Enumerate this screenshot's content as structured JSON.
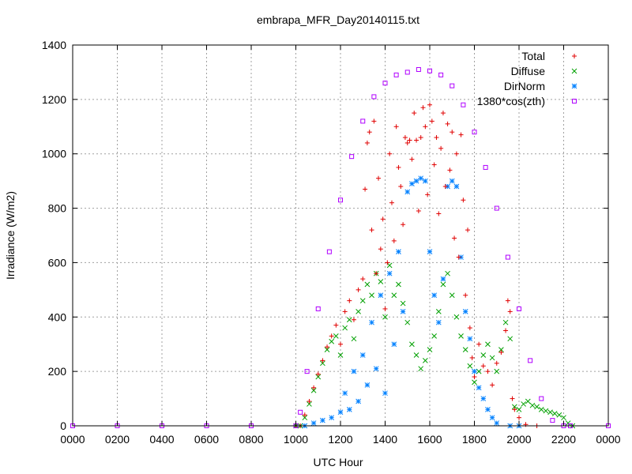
{
  "chart_data": {
    "type": "scatter",
    "title": "embrapa_MFR_Day20140115.txt",
    "xlabel": "UTC Hour",
    "ylabel": "Irradiance (W/m2)",
    "xlim": [
      0,
      24
    ],
    "ylim": [
      0,
      1400
    ],
    "x_ticks": [
      0,
      2,
      4,
      6,
      8,
      10,
      12,
      14,
      16,
      18,
      20,
      22,
      24
    ],
    "x_tick_labels": [
      "0000",
      "0200",
      "0400",
      "0600",
      "0800",
      "1000",
      "1200",
      "1400",
      "1600",
      "1800",
      "2000",
      "2200",
      "0000"
    ],
    "y_ticks": [
      0,
      200,
      400,
      600,
      800,
      1000,
      1200,
      1400
    ],
    "y_tick_labels": [
      "0",
      "200",
      "400",
      "600",
      "800",
      "1000",
      "1200",
      "1400"
    ],
    "grid": true,
    "legend_position": "top-right",
    "series": [
      {
        "name": "Total",
        "marker": "plus",
        "color": "#e00000",
        "points": [
          [
            10.0,
            0
          ],
          [
            10.2,
            0
          ],
          [
            10.4,
            40
          ],
          [
            10.6,
            90
          ],
          [
            10.8,
            140
          ],
          [
            11.0,
            190
          ],
          [
            11.2,
            240
          ],
          [
            11.4,
            290
          ],
          [
            11.6,
            330
          ],
          [
            11.8,
            370
          ],
          [
            12.0,
            300
          ],
          [
            12.2,
            420
          ],
          [
            12.4,
            460
          ],
          [
            12.6,
            390
          ],
          [
            12.8,
            500
          ],
          [
            13.0,
            540
          ],
          [
            13.1,
            870
          ],
          [
            13.2,
            1040
          ],
          [
            13.3,
            1080
          ],
          [
            13.4,
            720
          ],
          [
            13.5,
            1120
          ],
          [
            13.6,
            560
          ],
          [
            13.7,
            910
          ],
          [
            13.8,
            650
          ],
          [
            13.9,
            760
          ],
          [
            14.0,
            430
          ],
          [
            14.1,
            600
          ],
          [
            14.2,
            1000
          ],
          [
            14.3,
            820
          ],
          [
            14.4,
            680
          ],
          [
            14.5,
            1100
          ],
          [
            14.6,
            950
          ],
          [
            14.7,
            880
          ],
          [
            14.8,
            740
          ],
          [
            14.9,
            1060
          ],
          [
            15.0,
            1040
          ],
          [
            15.1,
            1050
          ],
          [
            15.2,
            980
          ],
          [
            15.3,
            1150
          ],
          [
            15.4,
            1050
          ],
          [
            15.5,
            790
          ],
          [
            15.6,
            1060
          ],
          [
            15.7,
            1170
          ],
          [
            15.8,
            1100
          ],
          [
            15.9,
            850
          ],
          [
            16.0,
            1180
          ],
          [
            16.1,
            1120
          ],
          [
            16.2,
            960
          ],
          [
            16.3,
            1060
          ],
          [
            16.4,
            780
          ],
          [
            16.5,
            1020
          ],
          [
            16.6,
            1150
          ],
          [
            16.7,
            880
          ],
          [
            16.8,
            1110
          ],
          [
            16.9,
            940
          ],
          [
            17.0,
            1080
          ],
          [
            17.1,
            690
          ],
          [
            17.2,
            1000
          ],
          [
            17.3,
            620
          ],
          [
            17.4,
            1070
          ],
          [
            17.5,
            830
          ],
          [
            17.6,
            480
          ],
          [
            17.7,
            720
          ],
          [
            17.8,
            360
          ],
          [
            17.9,
            250
          ],
          [
            18.0,
            180
          ],
          [
            18.2,
            300
          ],
          [
            18.4,
            220
          ],
          [
            18.6,
            200
          ],
          [
            18.8,
            150
          ],
          [
            19.0,
            230
          ],
          [
            19.2,
            270
          ],
          [
            19.4,
            350
          ],
          [
            19.5,
            460
          ],
          [
            19.6,
            420
          ],
          [
            19.7,
            100
          ],
          [
            19.8,
            60
          ],
          [
            20.0,
            30
          ],
          [
            20.3,
            5
          ],
          [
            20.8,
            0
          ]
        ]
      },
      {
        "name": "Diffuse",
        "marker": "x",
        "color": "#00a000",
        "points": [
          [
            10.0,
            0
          ],
          [
            10.2,
            0
          ],
          [
            10.4,
            30
          ],
          [
            10.6,
            80
          ],
          [
            10.8,
            130
          ],
          [
            11.0,
            180
          ],
          [
            11.2,
            230
          ],
          [
            11.4,
            280
          ],
          [
            11.6,
            310
          ],
          [
            11.8,
            330
          ],
          [
            12.0,
            260
          ],
          [
            12.2,
            360
          ],
          [
            12.4,
            390
          ],
          [
            12.6,
            320
          ],
          [
            12.8,
            420
          ],
          [
            13.0,
            460
          ],
          [
            13.2,
            520
          ],
          [
            13.4,
            480
          ],
          [
            13.6,
            560
          ],
          [
            13.8,
            530
          ],
          [
            14.0,
            400
          ],
          [
            14.2,
            590
          ],
          [
            14.4,
            480
          ],
          [
            14.6,
            520
          ],
          [
            14.8,
            450
          ],
          [
            15.0,
            380
          ],
          [
            15.2,
            300
          ],
          [
            15.4,
            260
          ],
          [
            15.6,
            210
          ],
          [
            15.8,
            240
          ],
          [
            16.0,
            280
          ],
          [
            16.2,
            330
          ],
          [
            16.4,
            420
          ],
          [
            16.6,
            520
          ],
          [
            16.8,
            560
          ],
          [
            17.0,
            480
          ],
          [
            17.2,
            400
          ],
          [
            17.4,
            330
          ],
          [
            17.6,
            280
          ],
          [
            17.8,
            220
          ],
          [
            18.0,
            160
          ],
          [
            18.2,
            200
          ],
          [
            18.4,
            260
          ],
          [
            18.6,
            300
          ],
          [
            18.8,
            250
          ],
          [
            19.0,
            200
          ],
          [
            19.2,
            280
          ],
          [
            19.4,
            380
          ],
          [
            19.6,
            320
          ],
          [
            19.8,
            70
          ],
          [
            20.0,
            60
          ],
          [
            20.2,
            80
          ],
          [
            20.4,
            90
          ],
          [
            20.6,
            75
          ],
          [
            20.8,
            70
          ],
          [
            21.0,
            60
          ],
          [
            21.2,
            55
          ],
          [
            21.4,
            50
          ],
          [
            21.6,
            45
          ],
          [
            21.8,
            40
          ],
          [
            22.0,
            30
          ],
          [
            22.2,
            10
          ],
          [
            22.4,
            0
          ]
        ]
      },
      {
        "name": "DirNorm",
        "marker": "star",
        "color": "#0080ff",
        "points": [
          [
            10.4,
            0
          ],
          [
            10.8,
            10
          ],
          [
            11.2,
            20
          ],
          [
            11.6,
            30
          ],
          [
            12.0,
            50
          ],
          [
            12.2,
            120
          ],
          [
            12.4,
            60
          ],
          [
            12.6,
            200
          ],
          [
            12.8,
            90
          ],
          [
            13.0,
            260
          ],
          [
            13.2,
            150
          ],
          [
            13.4,
            380
          ],
          [
            13.6,
            210
          ],
          [
            13.8,
            480
          ],
          [
            14.0,
            120
          ],
          [
            14.2,
            560
          ],
          [
            14.4,
            300
          ],
          [
            14.6,
            640
          ],
          [
            14.8,
            420
          ],
          [
            15.0,
            860
          ],
          [
            15.2,
            890
          ],
          [
            15.4,
            900
          ],
          [
            15.6,
            910
          ],
          [
            15.8,
            900
          ],
          [
            16.0,
            640
          ],
          [
            16.2,
            480
          ],
          [
            16.4,
            380
          ],
          [
            16.6,
            540
          ],
          [
            16.8,
            880
          ],
          [
            17.0,
            900
          ],
          [
            17.2,
            880
          ],
          [
            17.4,
            620
          ],
          [
            17.6,
            420
          ],
          [
            17.8,
            320
          ],
          [
            18.0,
            200
          ],
          [
            18.2,
            140
          ],
          [
            18.4,
            100
          ],
          [
            18.6,
            60
          ],
          [
            18.8,
            30
          ],
          [
            19.0,
            10
          ],
          [
            19.6,
            0
          ],
          [
            20.0,
            0
          ]
        ]
      },
      {
        "name": "1380*cos(zth)",
        "marker": "square",
        "color": "#b000ff",
        "points": [
          [
            0,
            0
          ],
          [
            2,
            0
          ],
          [
            4,
            0
          ],
          [
            6,
            0
          ],
          [
            8,
            0
          ],
          [
            10.0,
            0
          ],
          [
            10.2,
            50
          ],
          [
            10.5,
            200
          ],
          [
            11.0,
            430
          ],
          [
            11.5,
            640
          ],
          [
            12.0,
            830
          ],
          [
            12.5,
            990
          ],
          [
            13.0,
            1120
          ],
          [
            13.5,
            1210
          ],
          [
            14.0,
            1260
          ],
          [
            14.5,
            1290
          ],
          [
            15.0,
            1300
          ],
          [
            15.5,
            1310
          ],
          [
            16.0,
            1305
          ],
          [
            16.5,
            1290
          ],
          [
            17.0,
            1250
          ],
          [
            17.5,
            1180
          ],
          [
            18.0,
            1080
          ],
          [
            18.5,
            950
          ],
          [
            19.0,
            800
          ],
          [
            19.5,
            620
          ],
          [
            20.0,
            430
          ],
          [
            20.5,
            240
          ],
          [
            21.0,
            100
          ],
          [
            21.5,
            20
          ],
          [
            22.0,
            0
          ],
          [
            22.3,
            0
          ],
          [
            24,
            0
          ]
        ]
      }
    ]
  }
}
